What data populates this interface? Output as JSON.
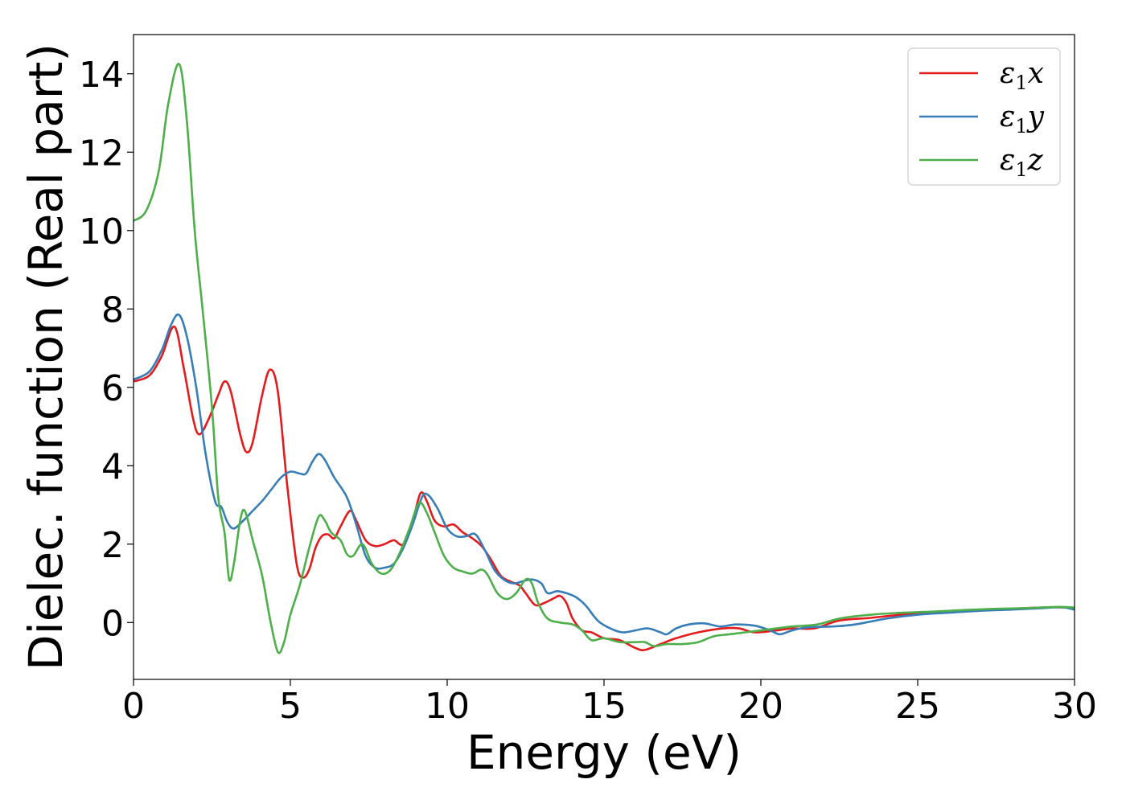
{
  "chart_data": {
    "type": "line",
    "xlabel": "Energy (eV)",
    "ylabel": "Dielec. function (Real part)",
    "xlim": [
      0,
      30
    ],
    "ylim": [
      -1.45,
      15
    ],
    "xticks": [
      0,
      5,
      10,
      15,
      20,
      25,
      30
    ],
    "yticks": [
      0,
      2,
      4,
      6,
      8,
      10,
      12,
      14
    ],
    "grid": false,
    "legend_position": "top-right",
    "series": [
      {
        "name": "ε1x",
        "legend_symbol": "ε",
        "legend_sub": "1",
        "legend_suffix": "x",
        "color": "#e41a1c",
        "points": [
          [
            0,
            6.15
          ],
          [
            0.5,
            6.3
          ],
          [
            0.9,
            6.8
          ],
          [
            1.3,
            7.55
          ],
          [
            1.6,
            6.5
          ],
          [
            1.9,
            5.2
          ],
          [
            2.1,
            4.8
          ],
          [
            2.4,
            5.2
          ],
          [
            2.7,
            5.8
          ],
          [
            2.9,
            6.15
          ],
          [
            3.1,
            5.9
          ],
          [
            3.4,
            4.8
          ],
          [
            3.6,
            4.35
          ],
          [
            3.8,
            4.6
          ],
          [
            4.1,
            5.8
          ],
          [
            4.35,
            6.45
          ],
          [
            4.6,
            5.9
          ],
          [
            4.9,
            3.5
          ],
          [
            5.2,
            1.5
          ],
          [
            5.4,
            1.15
          ],
          [
            5.6,
            1.35
          ],
          [
            5.8,
            1.9
          ],
          [
            6.0,
            2.2
          ],
          [
            6.2,
            2.25
          ],
          [
            6.4,
            2.15
          ],
          [
            6.6,
            2.45
          ],
          [
            6.9,
            2.85
          ],
          [
            7.1,
            2.6
          ],
          [
            7.4,
            2.1
          ],
          [
            7.7,
            1.95
          ],
          [
            8.0,
            2.0
          ],
          [
            8.3,
            2.1
          ],
          [
            8.6,
            2.0
          ],
          [
            8.9,
            2.6
          ],
          [
            9.15,
            3.3
          ],
          [
            9.35,
            3.1
          ],
          [
            9.6,
            2.6
          ],
          [
            9.9,
            2.45
          ],
          [
            10.2,
            2.5
          ],
          [
            10.5,
            2.3
          ],
          [
            10.8,
            2.15
          ],
          [
            11.1,
            1.95
          ],
          [
            11.4,
            1.6
          ],
          [
            11.7,
            1.2
          ],
          [
            12.0,
            1.05
          ],
          [
            12.3,
            0.95
          ],
          [
            12.5,
            0.75
          ],
          [
            12.8,
            0.45
          ],
          [
            13.1,
            0.5
          ],
          [
            13.4,
            0.62
          ],
          [
            13.6,
            0.68
          ],
          [
            13.8,
            0.5
          ],
          [
            14.0,
            0.1
          ],
          [
            14.3,
            -0.2
          ],
          [
            14.6,
            -0.25
          ],
          [
            15.0,
            -0.4
          ],
          [
            15.5,
            -0.45
          ],
          [
            16.0,
            -0.65
          ],
          [
            16.3,
            -0.7
          ],
          [
            16.8,
            -0.55
          ],
          [
            17.3,
            -0.4
          ],
          [
            18.0,
            -0.25
          ],
          [
            18.8,
            -0.15
          ],
          [
            19.3,
            -0.15
          ],
          [
            19.8,
            -0.25
          ],
          [
            20.5,
            -0.2
          ],
          [
            21.0,
            -0.15
          ],
          [
            21.7,
            -0.15
          ],
          [
            22.5,
            0.05
          ],
          [
            23.5,
            0.12
          ],
          [
            24.5,
            0.2
          ],
          [
            25.5,
            0.25
          ],
          [
            26.5,
            0.3
          ],
          [
            27.5,
            0.33
          ],
          [
            28.5,
            0.37
          ],
          [
            29.3,
            0.39
          ],
          [
            30.0,
            0.38
          ]
        ]
      },
      {
        "name": "ε1y",
        "legend_symbol": "ε",
        "legend_sub": "1",
        "legend_suffix": "y",
        "color": "#377eb8",
        "points": [
          [
            0,
            6.2
          ],
          [
            0.5,
            6.4
          ],
          [
            0.9,
            6.95
          ],
          [
            1.2,
            7.6
          ],
          [
            1.45,
            7.85
          ],
          [
            1.7,
            7.3
          ],
          [
            2.0,
            6.0
          ],
          [
            2.3,
            4.3
          ],
          [
            2.6,
            3.1
          ],
          [
            2.8,
            2.95
          ],
          [
            3.0,
            2.55
          ],
          [
            3.2,
            2.4
          ],
          [
            3.5,
            2.6
          ],
          [
            3.8,
            2.85
          ],
          [
            4.1,
            3.1
          ],
          [
            4.4,
            3.4
          ],
          [
            4.7,
            3.7
          ],
          [
            5.0,
            3.85
          ],
          [
            5.3,
            3.8
          ],
          [
            5.5,
            3.8
          ],
          [
            5.7,
            4.1
          ],
          [
            5.9,
            4.3
          ],
          [
            6.1,
            4.15
          ],
          [
            6.4,
            3.7
          ],
          [
            6.8,
            3.2
          ],
          [
            7.1,
            2.5
          ],
          [
            7.4,
            1.7
          ],
          [
            7.7,
            1.4
          ],
          [
            8.0,
            1.4
          ],
          [
            8.3,
            1.5
          ],
          [
            8.6,
            1.9
          ],
          [
            8.9,
            2.5
          ],
          [
            9.2,
            3.2
          ],
          [
            9.4,
            3.25
          ],
          [
            9.7,
            2.9
          ],
          [
            10.0,
            2.4
          ],
          [
            10.3,
            2.2
          ],
          [
            10.6,
            2.2
          ],
          [
            10.9,
            2.25
          ],
          [
            11.2,
            1.85
          ],
          [
            11.5,
            1.35
          ],
          [
            11.8,
            1.1
          ],
          [
            12.1,
            1.0
          ],
          [
            12.4,
            1.05
          ],
          [
            12.7,
            1.1
          ],
          [
            13.0,
            1.0
          ],
          [
            13.2,
            0.75
          ],
          [
            13.5,
            0.8
          ],
          [
            13.8,
            0.75
          ],
          [
            14.1,
            0.65
          ],
          [
            14.4,
            0.45
          ],
          [
            14.8,
            0.05
          ],
          [
            15.2,
            -0.15
          ],
          [
            15.6,
            -0.25
          ],
          [
            16.0,
            -0.2
          ],
          [
            16.4,
            -0.15
          ],
          [
            16.8,
            -0.25
          ],
          [
            17.0,
            -0.3
          ],
          [
            17.3,
            -0.15
          ],
          [
            17.7,
            -0.05
          ],
          [
            18.2,
            -0.02
          ],
          [
            18.7,
            -0.1
          ],
          [
            19.2,
            -0.05
          ],
          [
            19.8,
            -0.08
          ],
          [
            20.3,
            -0.2
          ],
          [
            20.6,
            -0.3
          ],
          [
            21.0,
            -0.2
          ],
          [
            21.5,
            -0.12
          ],
          [
            22.3,
            -0.1
          ],
          [
            23.0,
            -0.05
          ],
          [
            24.0,
            0.1
          ],
          [
            25.0,
            0.2
          ],
          [
            26.0,
            0.25
          ],
          [
            27.0,
            0.3
          ],
          [
            28.0,
            0.33
          ],
          [
            29.0,
            0.37
          ],
          [
            29.6,
            0.39
          ],
          [
            30.0,
            0.33
          ]
        ]
      },
      {
        "name": "ε1z",
        "legend_symbol": "ε",
        "legend_sub": "1",
        "legend_suffix": "z",
        "color": "#4daf4a",
        "points": [
          [
            0,
            10.25
          ],
          [
            0.4,
            10.5
          ],
          [
            0.8,
            11.5
          ],
          [
            1.1,
            13.2
          ],
          [
            1.45,
            14.25
          ],
          [
            1.7,
            12.8
          ],
          [
            1.95,
            10.0
          ],
          [
            2.2,
            8.0
          ],
          [
            2.5,
            5.5
          ],
          [
            2.7,
            3.2
          ],
          [
            2.9,
            2.3
          ],
          [
            3.05,
            1.1
          ],
          [
            3.2,
            1.5
          ],
          [
            3.4,
            2.6
          ],
          [
            3.55,
            2.85
          ],
          [
            3.8,
            2.1
          ],
          [
            4.1,
            1.2
          ],
          [
            4.35,
            0.1
          ],
          [
            4.6,
            -0.75
          ],
          [
            4.8,
            -0.5
          ],
          [
            5.0,
            0.2
          ],
          [
            5.3,
            0.95
          ],
          [
            5.6,
            1.9
          ],
          [
            5.9,
            2.7
          ],
          [
            6.1,
            2.6
          ],
          [
            6.3,
            2.3
          ],
          [
            6.6,
            2.1
          ],
          [
            6.8,
            1.75
          ],
          [
            7.0,
            1.7
          ],
          [
            7.3,
            2.0
          ],
          [
            7.6,
            1.5
          ],
          [
            7.9,
            1.25
          ],
          [
            8.2,
            1.35
          ],
          [
            8.5,
            1.8
          ],
          [
            8.8,
            2.4
          ],
          [
            9.1,
            3.05
          ],
          [
            9.35,
            2.8
          ],
          [
            9.6,
            2.3
          ],
          [
            9.9,
            1.7
          ],
          [
            10.2,
            1.4
          ],
          [
            10.5,
            1.3
          ],
          [
            10.8,
            1.25
          ],
          [
            11.1,
            1.35
          ],
          [
            11.3,
            1.2
          ],
          [
            11.6,
            0.75
          ],
          [
            11.9,
            0.6
          ],
          [
            12.2,
            0.75
          ],
          [
            12.5,
            1.1
          ],
          [
            12.7,
            1.0
          ],
          [
            12.9,
            0.5
          ],
          [
            13.2,
            0.1
          ],
          [
            13.6,
            0.0
          ],
          [
            14.0,
            -0.05
          ],
          [
            14.3,
            -0.2
          ],
          [
            14.6,
            -0.45
          ],
          [
            15.0,
            -0.4
          ],
          [
            15.5,
            -0.5
          ],
          [
            16.0,
            -0.5
          ],
          [
            16.3,
            -0.5
          ],
          [
            16.6,
            -0.6
          ],
          [
            17.0,
            -0.55
          ],
          [
            17.5,
            -0.55
          ],
          [
            18.0,
            -0.5
          ],
          [
            18.5,
            -0.35
          ],
          [
            19.0,
            -0.3
          ],
          [
            19.5,
            -0.25
          ],
          [
            20.0,
            -0.2
          ],
          [
            20.5,
            -0.15
          ],
          [
            21.0,
            -0.1
          ],
          [
            21.8,
            -0.05
          ],
          [
            22.5,
            0.1
          ],
          [
            23.5,
            0.2
          ],
          [
            24.5,
            0.25
          ],
          [
            25.5,
            0.28
          ],
          [
            26.5,
            0.32
          ],
          [
            27.5,
            0.35
          ],
          [
            28.5,
            0.37
          ],
          [
            29.5,
            0.4
          ],
          [
            30.0,
            0.38
          ]
        ]
      }
    ]
  }
}
